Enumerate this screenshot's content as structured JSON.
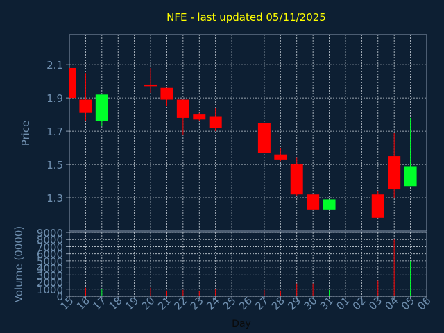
{
  "chart_data": {
    "type": "candlestick",
    "title": "NFE - last updated 05/11/2025",
    "xlabel": "Day",
    "ylabel_price": "Price",
    "ylabel_volume": "Volume (0000)",
    "price_ylim": [
      1.1,
      2.28
    ],
    "price_ticks": [
      "1.3",
      "1.5",
      "1.7",
      "1.9",
      "2.1"
    ],
    "volume_ylim": [
      0,
      9000
    ],
    "volume_ticks": [
      "0",
      "1000",
      "2000",
      "3000",
      "4000",
      "5000",
      "6000",
      "7000",
      "8000",
      "9000"
    ],
    "x_tick_labels": [
      "15",
      "16",
      "17",
      "18",
      "19",
      "20",
      "21",
      "22",
      "23",
      "24",
      "25",
      "26",
      "27",
      "28",
      "29",
      "30",
      "31",
      "01",
      "02",
      "03",
      "04",
      "05",
      "06"
    ],
    "grid": true,
    "colors": {
      "background": "#0d1f33",
      "grid": "#c8d0d8",
      "axis": "#8a9bb0",
      "title": "#ffff00",
      "label": "#6f8faf",
      "up": "#00ff2a",
      "down": "#ff0000"
    },
    "candles": [
      {
        "day": "15",
        "open": 2.08,
        "high": 2.08,
        "low": 1.9,
        "close": 1.9,
        "volume": 0
      },
      {
        "day": "16",
        "open": 1.89,
        "high": 2.05,
        "low": 1.76,
        "close": 1.81,
        "volume": 1200
      },
      {
        "day": "17",
        "open": 1.76,
        "high": 1.92,
        "low": 1.73,
        "close": 1.92,
        "volume": 1000
      },
      {
        "day": "20",
        "open": 1.98,
        "high": 2.08,
        "low": 1.93,
        "close": 1.97,
        "volume": 1200
      },
      {
        "day": "21",
        "open": 1.96,
        "high": 1.96,
        "low": 1.85,
        "close": 1.89,
        "volume": 800
      },
      {
        "day": "22",
        "open": 1.89,
        "high": 1.89,
        "low": 1.68,
        "close": 1.78,
        "volume": 900
      },
      {
        "day": "23",
        "open": 1.8,
        "high": 1.81,
        "low": 1.76,
        "close": 1.77,
        "volume": 700
      },
      {
        "day": "24",
        "open": 1.79,
        "high": 1.84,
        "low": 1.7,
        "close": 1.72,
        "volume": 1000
      },
      {
        "day": "27",
        "open": 1.75,
        "high": 1.75,
        "low": 1.57,
        "close": 1.57,
        "volume": 900
      },
      {
        "day": "28",
        "open": 1.56,
        "high": 1.6,
        "low": 1.52,
        "close": 1.53,
        "volume": 800
      },
      {
        "day": "29",
        "open": 1.5,
        "high": 1.54,
        "low": 1.31,
        "close": 1.32,
        "volume": 1800
      },
      {
        "day": "30",
        "open": 1.32,
        "high": 1.32,
        "low": 1.23,
        "close": 1.23,
        "volume": 1800
      },
      {
        "day": "31",
        "open": 1.23,
        "high": 1.29,
        "low": 1.23,
        "close": 1.29,
        "volume": 900
      },
      {
        "day": "03",
        "open": 1.32,
        "high": 1.34,
        "low": 1.18,
        "close": 1.18,
        "volume": 2200
      },
      {
        "day": "04",
        "open": 1.55,
        "high": 1.69,
        "low": 1.3,
        "close": 1.35,
        "volume": 8000
      },
      {
        "day": "05",
        "open": 1.37,
        "high": 1.78,
        "low": 1.37,
        "close": 1.49,
        "volume": 5000
      }
    ]
  }
}
